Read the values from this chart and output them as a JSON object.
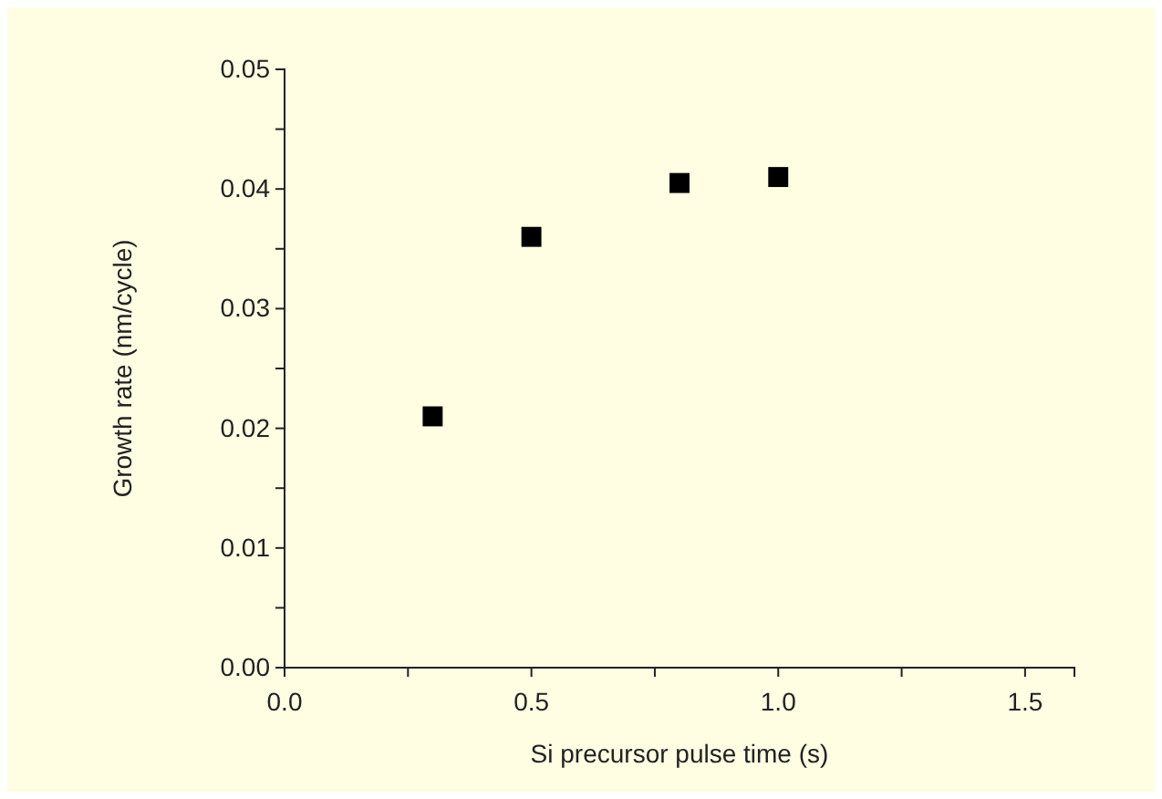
{
  "chart_data": {
    "type": "scatter",
    "xlabel": "Si precursor pulse time (s)",
    "ylabel": "Growth rate (nm/cycle)",
    "x": [
      0.3,
      0.5,
      0.8,
      1.0
    ],
    "series": [
      {
        "color": "#000000",
        "values": [
          0.021,
          0.036,
          0.0405,
          0.041
        ]
      }
    ],
    "marker": "square",
    "xlim": [
      0,
      1.6
    ],
    "xticks": [
      {
        "value": 0,
        "label": "0.0"
      },
      {
        "value": 0.25,
        "label": null
      },
      {
        "value": 0.5,
        "label": "0.5"
      },
      {
        "value": 0.75,
        "label": null
      },
      {
        "value": 1,
        "label": "1.0"
      },
      {
        "value": 1.25,
        "label": null
      },
      {
        "value": 1.5,
        "label": "1.5"
      }
    ],
    "ylim": [
      0,
      0.05
    ],
    "yticks": [
      {
        "value": 0,
        "label": "0.00"
      },
      {
        "value": 0.005,
        "label": null
      },
      {
        "value": 0.01,
        "label": "0.01"
      },
      {
        "value": 0.015,
        "label": null
      },
      {
        "value": 0.02,
        "label": "0.02"
      },
      {
        "value": 0.025,
        "label": null
      },
      {
        "value": 0.03,
        "label": "0.03"
      },
      {
        "value": 0.035,
        "label": null
      },
      {
        "value": 0.04,
        "label": "0.04"
      },
      {
        "value": 0.045,
        "label": null
      },
      {
        "value": 0.05,
        "label": "0.05"
      }
    ],
    "grid": false
  }
}
